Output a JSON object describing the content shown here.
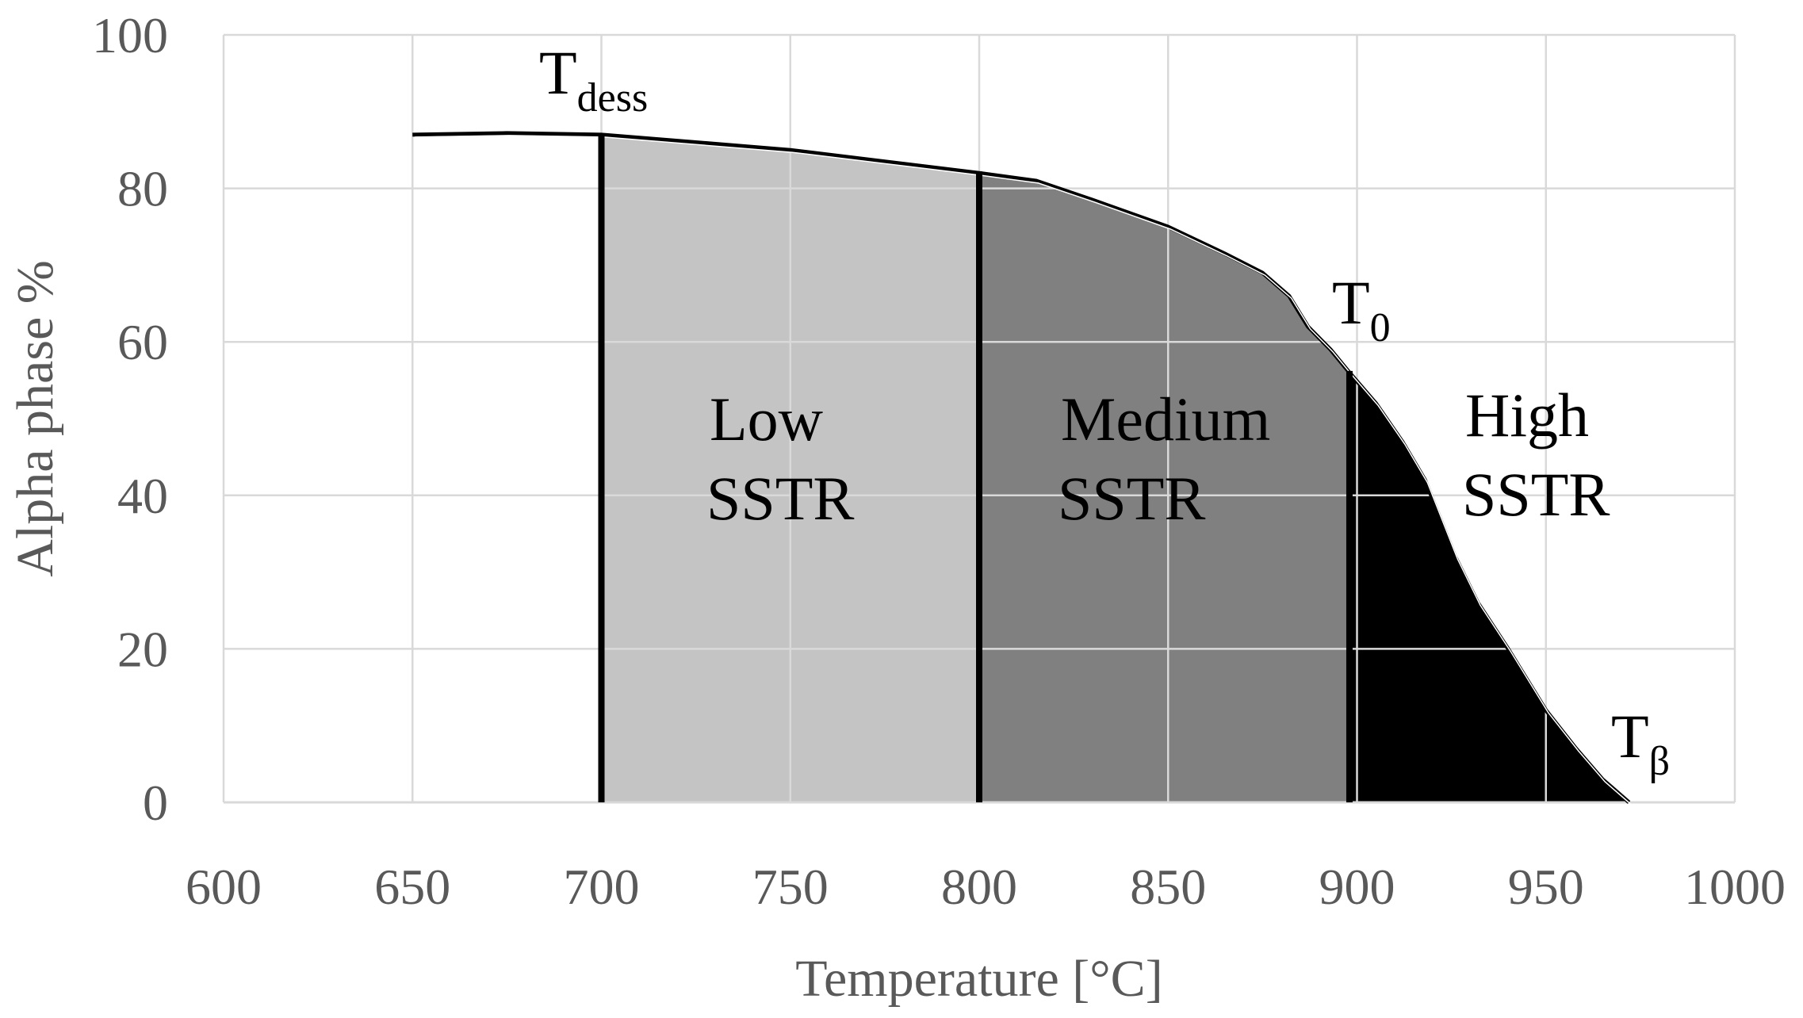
{
  "chart_data": {
    "type": "area",
    "xlabel": "Temperature [°C]",
    "ylabel": "Alpha phase %",
    "xlim": [
      600,
      1000
    ],
    "ylim": [
      0,
      100
    ],
    "xticks": [
      "600",
      "650",
      "700",
      "750",
      "800",
      "850",
      "900",
      "950",
      "1000"
    ],
    "yticks": [
      "0",
      "20",
      "40",
      "60",
      "80",
      "100"
    ],
    "grid": true,
    "series": [
      {
        "x": [
          650,
          675,
          700,
          725,
          750,
          775,
          800,
          815,
          830,
          850,
          865,
          875,
          882,
          887,
          893,
          898,
          905,
          912,
          918,
          922,
          926,
          932,
          940,
          950,
          958,
          965,
          972
        ],
        "y": [
          87,
          87.2,
          87,
          86,
          85,
          83.5,
          82,
          81,
          78.5,
          75,
          71.5,
          69,
          66,
          62,
          59,
          56,
          52,
          47,
          42,
          37,
          32,
          26,
          20,
          12,
          7,
          3,
          0
        ]
      }
    ],
    "regions": [
      {
        "label_line1": "Low",
        "label_line2": "SSTR",
        "x_start": 700,
        "x_end": 800,
        "fill": "#c4c4c4"
      },
      {
        "label_line1": "Medium",
        "label_line2": "SSTR",
        "x_start": 800,
        "x_end": 898,
        "fill": "#808080"
      },
      {
        "label_line1": "High",
        "label_line2": "SSTR",
        "x_start": 898,
        "x_end": 972,
        "fill": "#000000"
      }
    ],
    "markers": [
      {
        "main": "T",
        "sub": "dess",
        "x": 700
      },
      {
        "main": "T",
        "sub": "0",
        "x": 898
      },
      {
        "main": "T",
        "sub": "β",
        "x": 972
      }
    ]
  }
}
